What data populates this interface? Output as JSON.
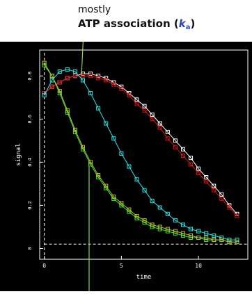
{
  "caption": {
    "line1": "mostly",
    "line2_text": "ATP association (",
    "line2_symbol": "k",
    "line2_subscript": "a",
    "line2_close": ")"
  },
  "colors": {
    "background": "#000000",
    "axes": "#ffffff",
    "pointer": "#8fd14f",
    "series_white": "#ffffff",
    "series_red": "#dd1111",
    "series_cyan": "#22e8e8",
    "series_green": "#33ee33",
    "series_olive": "#bbbb22"
  },
  "chart_data": {
    "type": "scatter",
    "xlabel": "time",
    "ylabel": "signal",
    "xlim": [
      -0.3,
      13.2
    ],
    "ylim": [
      -0.05,
      0.92
    ],
    "x_ticks": [
      0,
      5,
      10
    ],
    "x_tick_labels": [
      "0",
      "5",
      "10"
    ],
    "y_ticks": [
      0,
      0.2,
      0.4,
      0.6,
      0.8
    ],
    "y_tick_labels": [
      "0",
      "0.2",
      "0.4",
      "0.6",
      "0.8"
    ],
    "baseline": 0.02,
    "grid": false,
    "series": [
      {
        "color": "series_white",
        "marker": "square",
        "x": [
          0,
          0.5,
          1,
          1.5,
          2,
          2.5,
          3,
          3.5,
          4,
          4.5,
          5,
          5.5,
          6,
          6.5,
          7,
          7.5,
          8,
          8.5,
          9,
          9.5,
          10,
          10.5,
          11,
          11.5,
          12,
          12.5
        ],
        "y": [
          0.72,
          0.75,
          0.77,
          0.79,
          0.8,
          0.81,
          0.81,
          0.8,
          0.79,
          0.77,
          0.75,
          0.72,
          0.69,
          0.66,
          0.62,
          0.58,
          0.54,
          0.5,
          0.46,
          0.42,
          0.37,
          0.33,
          0.29,
          0.25,
          0.2,
          0.16
        ]
      },
      {
        "color": "series_red",
        "marker": "square",
        "x": [
          0,
          0.5,
          1,
          1.5,
          2,
          2.5,
          3,
          3.5,
          4,
          4.5,
          5,
          5.5,
          6,
          6.5,
          7,
          7.5,
          8,
          8.5,
          9,
          9.5,
          10,
          10.5,
          11,
          11.5,
          12,
          12.5
        ],
        "y": [
          0.72,
          0.75,
          0.77,
          0.79,
          0.8,
          0.8,
          0.8,
          0.79,
          0.78,
          0.76,
          0.74,
          0.71,
          0.67,
          0.64,
          0.6,
          0.56,
          0.51,
          0.47,
          0.43,
          0.39,
          0.35,
          0.31,
          0.27,
          0.23,
          0.19,
          0.15
        ]
      },
      {
        "color": "series_cyan",
        "marker": "square",
        "x": [
          0,
          0.5,
          1,
          1.5,
          2,
          2.5,
          3,
          3.5,
          4,
          4.5,
          5,
          5.5,
          6,
          6.5,
          7,
          7.5,
          8,
          8.5,
          9,
          9.5,
          10,
          10.5,
          11,
          11.5,
          12,
          12.5
        ],
        "y": [
          0.71,
          0.78,
          0.82,
          0.83,
          0.82,
          0.78,
          0.72,
          0.65,
          0.58,
          0.51,
          0.44,
          0.38,
          0.32,
          0.27,
          0.22,
          0.19,
          0.16,
          0.13,
          0.11,
          0.09,
          0.08,
          0.07,
          0.06,
          0.05,
          0.04,
          0.04
        ]
      },
      {
        "color": "series_green",
        "marker": "square",
        "x": [
          0,
          0.5,
          1,
          1.5,
          2,
          2.5,
          3,
          3.5,
          4,
          4.5,
          5,
          5.5,
          6,
          6.5,
          7,
          7.5,
          8,
          8.5,
          9,
          9.5,
          10,
          10.5,
          11,
          11.5,
          12,
          12.5
        ],
        "y": [
          0.85,
          0.8,
          0.72,
          0.63,
          0.54,
          0.46,
          0.39,
          0.33,
          0.28,
          0.23,
          0.2,
          0.17,
          0.14,
          0.12,
          0.1,
          0.09,
          0.08,
          0.07,
          0.06,
          0.05,
          0.05,
          0.04,
          0.04,
          0.04,
          0.03,
          0.03
        ]
      },
      {
        "color": "series_olive",
        "marker": "square",
        "x": [
          0,
          0.5,
          1,
          1.5,
          2,
          2.5,
          3,
          3.5,
          4,
          4.5,
          5,
          5.5,
          6,
          6.5,
          7,
          7.5,
          8,
          8.5,
          9,
          9.5,
          10,
          10.5,
          11,
          11.5,
          12,
          12.5
        ],
        "y": [
          0.86,
          0.8,
          0.73,
          0.64,
          0.55,
          0.47,
          0.4,
          0.34,
          0.29,
          0.24,
          0.21,
          0.18,
          0.15,
          0.13,
          0.11,
          0.1,
          0.09,
          0.08,
          0.07,
          0.06,
          0.05,
          0.05,
          0.04,
          0.04,
          0.03,
          0.03
        ]
      }
    ],
    "annotations": [
      {
        "text_ref": "caption",
        "points_to_x": 2.5,
        "points_to_y": 0.81
      }
    ]
  }
}
